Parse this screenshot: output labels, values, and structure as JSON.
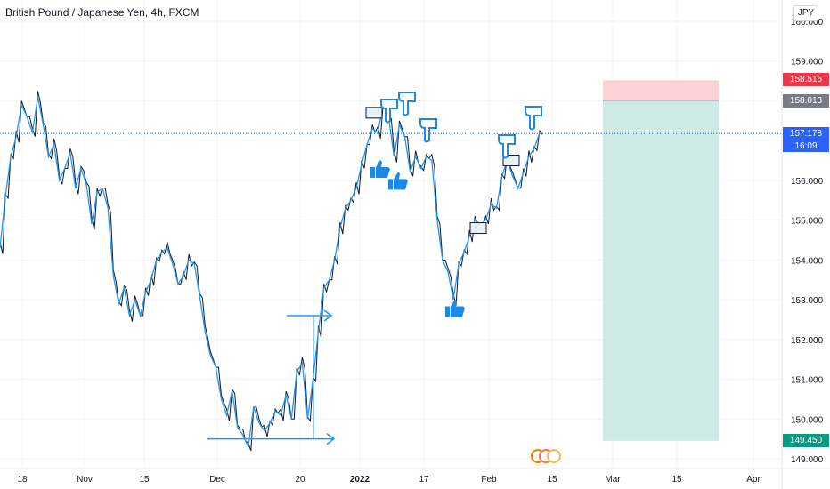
{
  "header": {
    "title": "British Pound / Japanese Yen, 4h, FXCM",
    "unit": "JPY"
  },
  "chart_data": {
    "type": "line",
    "title": "British Pound / Japanese Yen, 4h, FXCM",
    "xlabel": "",
    "ylabel": "",
    "ylim": [
      148.85,
      160.35
    ],
    "y_ticks": [
      149,
      150,
      151,
      152,
      153,
      154,
      155,
      156,
      157,
      158,
      159,
      160
    ],
    "y_tick_labels": [
      "149.000",
      "150.000",
      "151.000",
      "152.000",
      "153.000",
      "154.000",
      "155.000",
      "156.000",
      "157.000",
      "158.000",
      "159.000",
      "160.000"
    ],
    "x_tick_labels": [
      "18",
      "Nov",
      "15",
      "Dec",
      "20",
      "2022",
      "17",
      "Feb",
      "15",
      "Mar",
      "15",
      "Apr"
    ],
    "x_tick_bold": [
      "2022"
    ],
    "grid": true,
    "series": [
      {
        "values": [
          154.3,
          155.6,
          156.6,
          157.1,
          157.9,
          157.6,
          157.2,
          158.1,
          157.4,
          156.6,
          156.9,
          156.0,
          156.3,
          156.7,
          155.8,
          156.3,
          155.9,
          154.9,
          155.7,
          155.8,
          155.3,
          153.6,
          152.9,
          153.3,
          152.6,
          153.0,
          152.6,
          153.2,
          153.5,
          154.0,
          154.2,
          154.3,
          153.9,
          153.4,
          153.6,
          154.0,
          153.9,
          153.1,
          152.2,
          151.6,
          151.3,
          150.5,
          150.1,
          150.7,
          149.8,
          149.6,
          149.3,
          150.3,
          149.9,
          149.7,
          149.9,
          150.2,
          150.1,
          150.6,
          150.0,
          151.2,
          151.4,
          150.0,
          151.0,
          152.2,
          153.3,
          153.5,
          154.0,
          154.8,
          155.3,
          155.5,
          155.8,
          156.4,
          156.9,
          157.3,
          157.2,
          157.9,
          157.6,
          156.6,
          157.4,
          157.1,
          156.2,
          156.6,
          156.3,
          156.6,
          156.5,
          155.0,
          154.0,
          153.7,
          153.0,
          153.9,
          154.2,
          154.6,
          155.0,
          154.9,
          155.0,
          155.4,
          155.3,
          156.1,
          156.5,
          156.1,
          155.8,
          156.2,
          156.6,
          156.8,
          157.2
        ]
      }
    ],
    "price_levels": {
      "last": "157.178",
      "stop": "158.516",
      "entry": "158.013",
      "target": "149.450"
    },
    "countdown": "16:09",
    "colors": {
      "line": "#2196f3",
      "stop_zone": "#fcd2d6",
      "target_zone": "#cdebe4",
      "last_tag": "#2962ff",
      "stop_tag": "#f23645",
      "entry_tag": "#787b86",
      "target_tag": "#089981",
      "annotation": "#2196f3",
      "hand": "#1e88e5"
    }
  },
  "icons": [
    "thumbs-up-icon",
    "pointing-down-icon",
    "arrow-right-icon",
    "flag-icon"
  ]
}
